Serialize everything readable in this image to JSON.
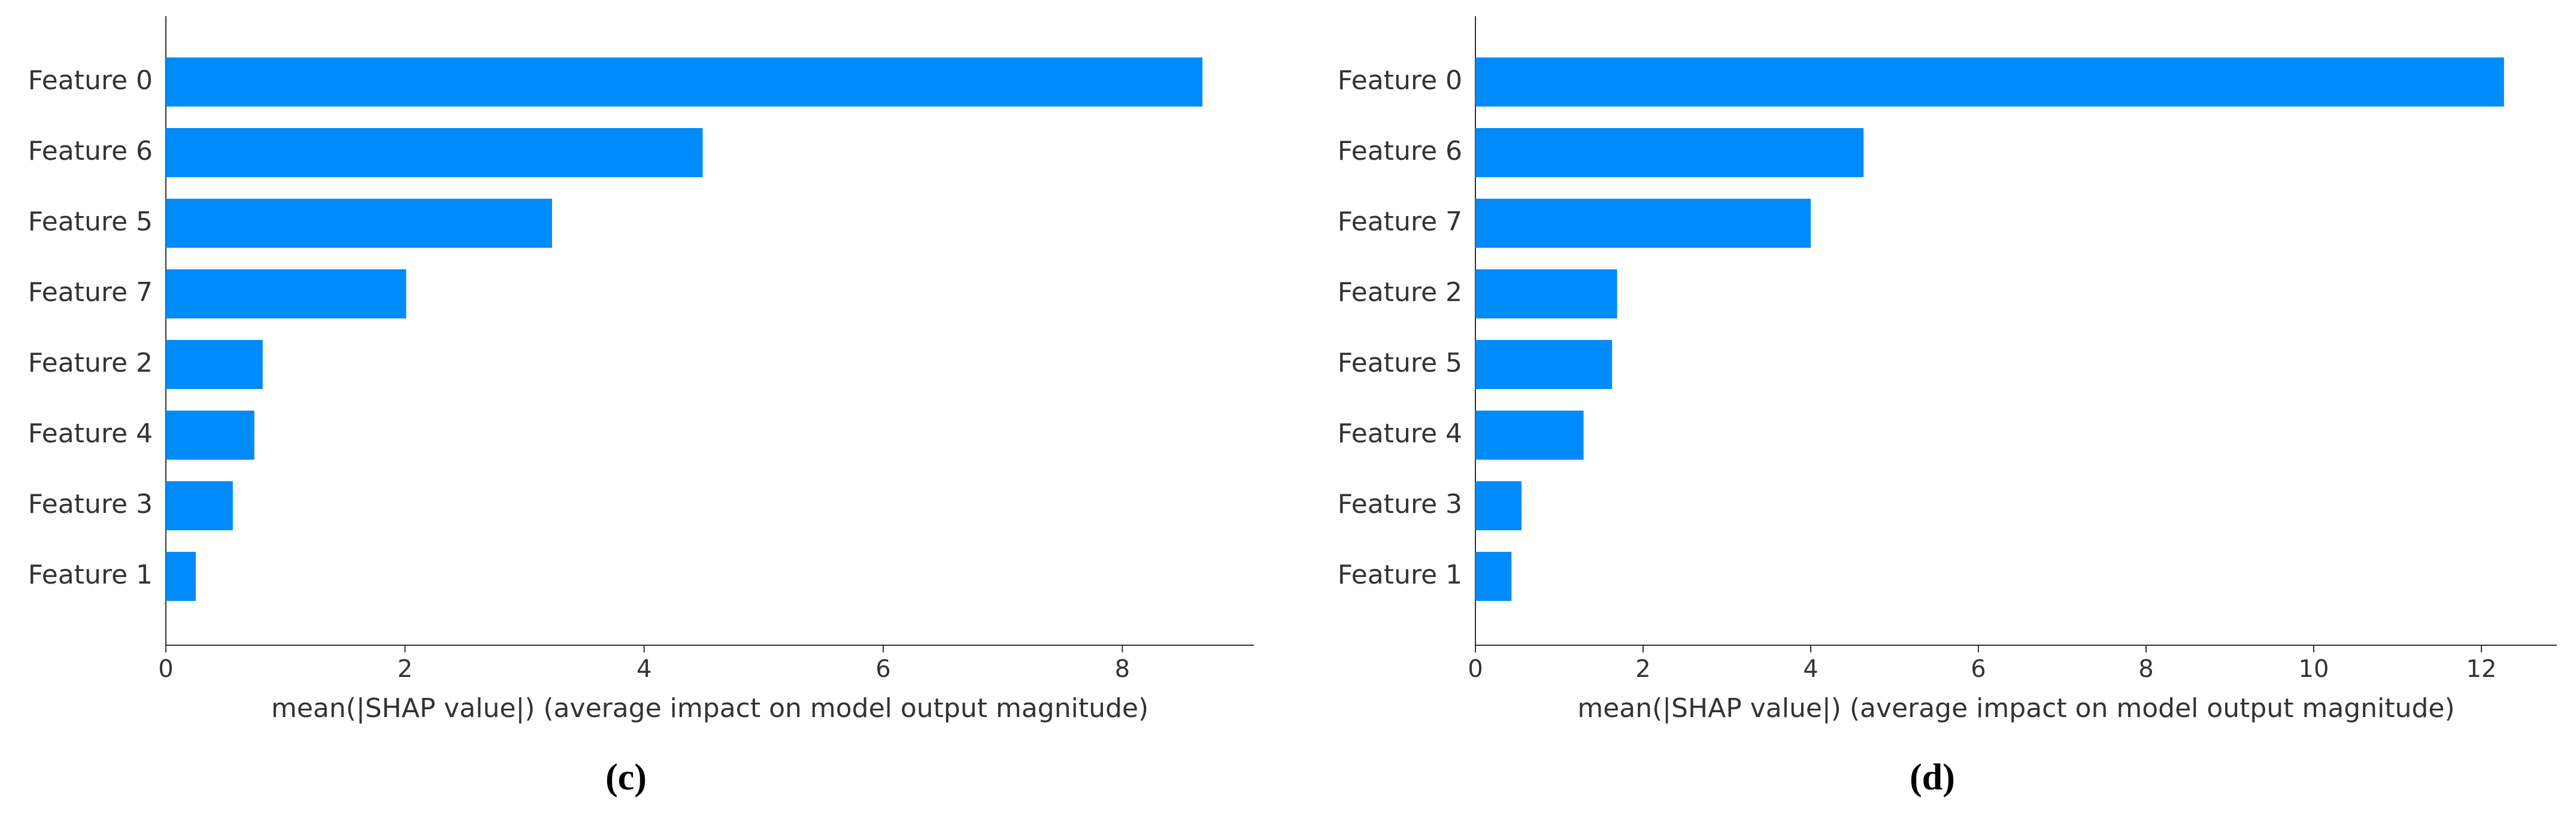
{
  "chart_data": [
    {
      "type": "bar",
      "orientation": "horizontal",
      "categories": [
        "Feature 0",
        "Feature 6",
        "Feature 5",
        "Feature 7",
        "Feature 2",
        "Feature 4",
        "Feature 3",
        "Feature 1"
      ],
      "values": [
        8.67,
        4.49,
        3.23,
        2.01,
        0.81,
        0.74,
        0.56,
        0.25
      ],
      "color": "#008bfb",
      "xlim": [
        0,
        9.1
      ],
      "xticks": [
        0,
        2,
        4,
        6,
        8
      ],
      "xlabel": "mean(|SHAP value|) (average impact on model output magnitude)",
      "caption": "(c)"
    },
    {
      "type": "bar",
      "orientation": "horizontal",
      "categories": [
        "Feature 0",
        "Feature 6",
        "Feature 7",
        "Feature 2",
        "Feature 5",
        "Feature 4",
        "Feature 3",
        "Feature 1"
      ],
      "values": [
        12.27,
        4.63,
        4.0,
        1.69,
        1.63,
        1.29,
        0.55,
        0.43
      ],
      "color": "#008bfb",
      "xlim": [
        0,
        12.9
      ],
      "xticks": [
        0,
        2,
        4,
        6,
        8,
        10,
        12
      ],
      "xlabel": "mean(|SHAP value|) (average impact on model output magnitude)",
      "caption": "(d)"
    }
  ]
}
